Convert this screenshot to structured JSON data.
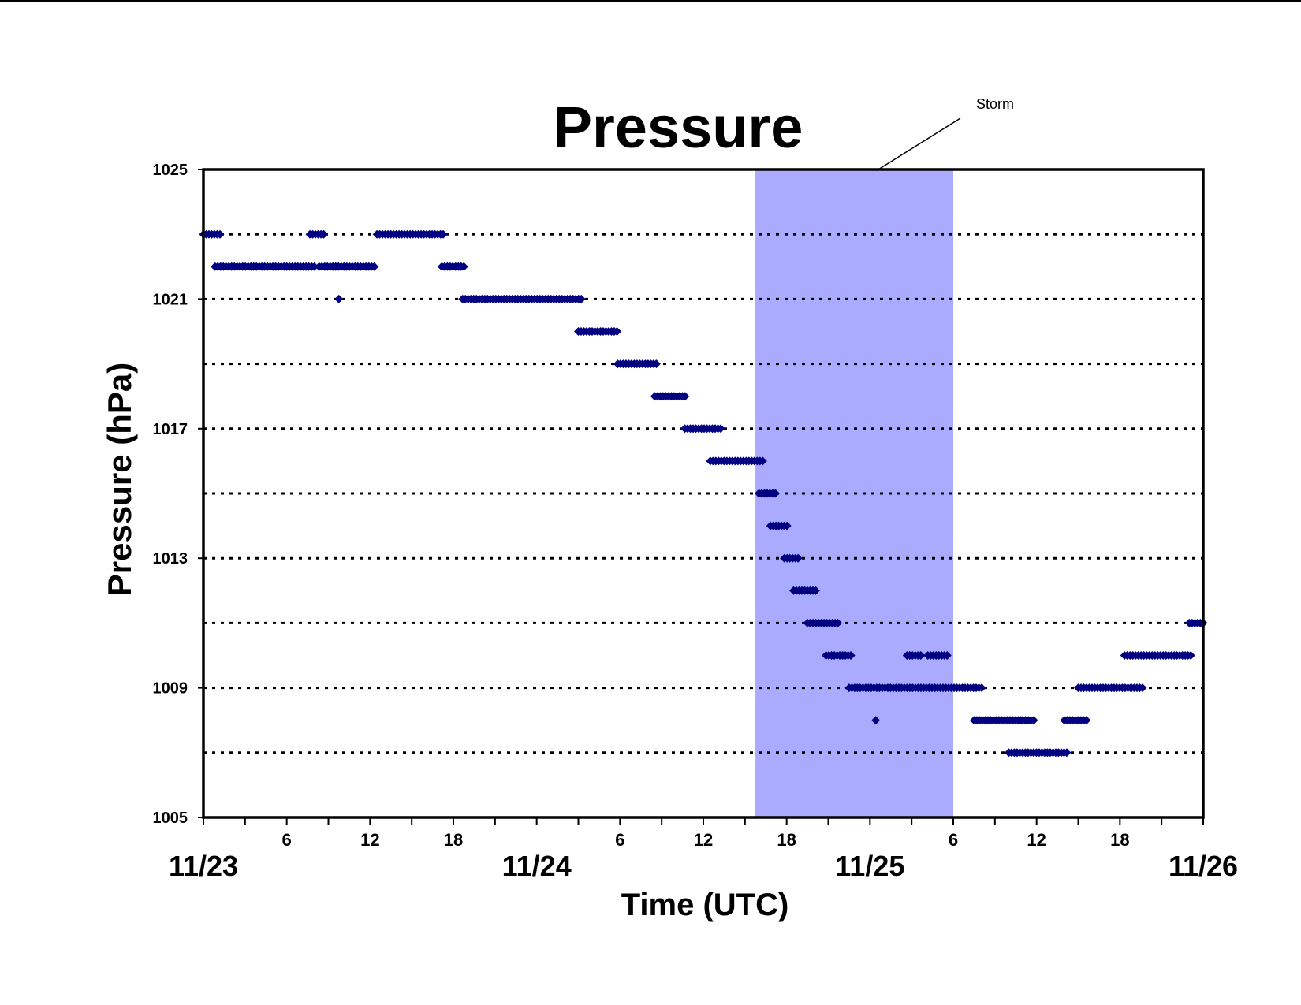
{
  "chart_data": {
    "type": "scatter",
    "title": "Pressure",
    "xlabel": "Time (UTC)",
    "ylabel": "Pressure (hPa)",
    "xlim": [
      "11/23 00:00",
      "11/26 00:00"
    ],
    "ylim": [
      1005,
      1025
    ],
    "yticks": [
      1005,
      1009,
      1013,
      1017,
      1021,
      1025
    ],
    "ygrid": [
      1007,
      1009,
      1011,
      1013,
      1015,
      1017,
      1019,
      1021,
      1023
    ],
    "x_hour_ticks": [
      {
        "hours": 6,
        "label": "6"
      },
      {
        "hours": 12,
        "label": "12"
      },
      {
        "hours": 18,
        "label": "18"
      },
      {
        "hours": 30,
        "label": "6"
      },
      {
        "hours": 36,
        "label": "12"
      },
      {
        "hours": 42,
        "label": "18"
      },
      {
        "hours": 54,
        "label": "6"
      },
      {
        "hours": 60,
        "label": "12"
      },
      {
        "hours": 66,
        "label": "18"
      }
    ],
    "x_date_ticks": [
      {
        "hours": 0,
        "label": "11/23"
      },
      {
        "hours": 24,
        "label": "11/24"
      },
      {
        "hours": 48,
        "label": "11/25"
      },
      {
        "hours": 72,
        "label": "11/26"
      }
    ],
    "annotation": {
      "label": "Storm",
      "x_start": "11/24 15:45",
      "x_end": "11/25 06:00",
      "color": "#aaaaff"
    },
    "marker_color": "#000080",
    "grid": true,
    "legend": "none",
    "series": [
      {
        "points": [
          {
            "x_start": "11/23 00:00",
            "x_end": "11/23 01:20",
            "y": 1023
          },
          {
            "x_start": "11/23 00:50",
            "x_end": "11/23 08:00",
            "y": 1022
          },
          {
            "x_start": "11/23 07:40",
            "x_end": "11/23 08:40",
            "y": 1023
          },
          {
            "x_start": "11/23 08:20",
            "x_end": "11/23 12:30",
            "y": 1022
          },
          {
            "x": "11/23 09:45",
            "y": 1021
          },
          {
            "x_start": "11/23 12:30",
            "x_end": "11/23 17:20",
            "y": 1023
          },
          {
            "x_start": "11/23 17:10",
            "x_end": "11/23 18:50",
            "y": 1022
          },
          {
            "x_start": "11/23 18:40",
            "x_end": "11/24 03:20",
            "y": 1021
          },
          {
            "x_start": "11/24 03:00",
            "x_end": "11/24 05:55",
            "y": 1020
          },
          {
            "x_start": "11/24 05:50",
            "x_end": "11/24 08:40",
            "y": 1019
          },
          {
            "x_start": "11/24 08:30",
            "x_end": "11/24 10:50",
            "y": 1018
          },
          {
            "x_start": "11/24 10:40",
            "x_end": "11/24 13:20",
            "y": 1017
          },
          {
            "x_start": "11/24 12:30",
            "x_end": "11/24 16:20",
            "y": 1016
          },
          {
            "x_start": "11/24 16:00",
            "x_end": "11/24 17:20",
            "y": 1015
          },
          {
            "x_start": "11/24 16:50",
            "x_end": "11/24 18:10",
            "y": 1014
          },
          {
            "x_start": "11/24 17:50",
            "x_end": "11/24 19:00",
            "y": 1013
          },
          {
            "x_start": "11/24 18:30",
            "x_end": "11/24 20:10",
            "y": 1012
          },
          {
            "x_start": "11/24 19:30",
            "x_end": "11/24 21:50",
            "y": 1011
          },
          {
            "x_start": "11/24 20:50",
            "x_end": "11/24 22:40",
            "y": 1010
          },
          {
            "x_start": "11/24 22:30",
            "x_end": "11/25 04:40",
            "y": 1009
          },
          {
            "x": "11/25 00:25",
            "y": 1008
          },
          {
            "x_start": "11/25 02:40",
            "x_end": "11/25 03:50",
            "y": 1010
          },
          {
            "x_start": "11/25 04:10",
            "x_end": "11/25 05:40",
            "y": 1010
          },
          {
            "x_start": "11/25 04:40",
            "x_end": "11/25 08:10",
            "y": 1009
          },
          {
            "x_start": "11/25 07:30",
            "x_end": "11/25 11:00",
            "y": 1008
          },
          {
            "x_start": "11/25 11:00",
            "x_end": "11/25 11:50",
            "y": 1008
          },
          {
            "x_start": "11/25 10:00",
            "x_end": "11/25 14:20",
            "y": 1007
          },
          {
            "x_start": "11/25 14:00",
            "x_end": "11/25 15:40",
            "y": 1008
          },
          {
            "x_start": "11/25 15:00",
            "x_end": "11/25 18:50",
            "y": 1009
          },
          {
            "x_start": "11/25 18:50",
            "x_end": "11/25 19:40",
            "y": 1009
          },
          {
            "x_start": "11/25 18:20",
            "x_end": "11/25 23:10",
            "y": 1010
          },
          {
            "x_start": "11/25 23:00",
            "x_end": "11/26 00:00",
            "y": 1011
          }
        ]
      }
    ]
  }
}
